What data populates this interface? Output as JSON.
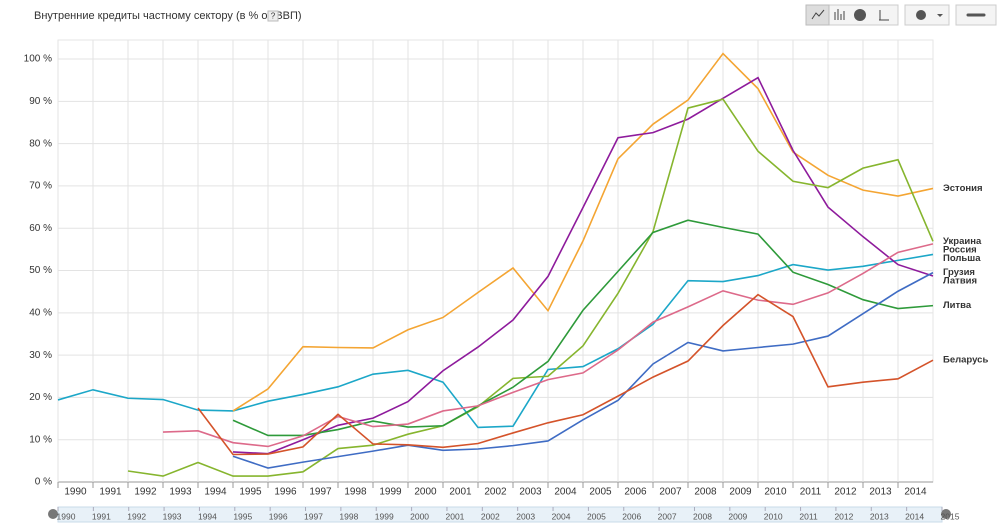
{
  "chart_data": {
    "type": "line",
    "title": "Внутренние кредиты частному сектору (в % от ВВП)",
    "help": "?",
    "x": [
      1990,
      1991,
      1992,
      1993,
      1994,
      1995,
      1996,
      1997,
      1998,
      1999,
      2000,
      2001,
      2002,
      2003,
      2004,
      2005,
      2006,
      2007,
      2008,
      2009,
      2010,
      2011,
      2012,
      2013,
      2014,
      2015
    ],
    "xlim": [
      1990,
      2015
    ],
    "xticks": [
      1990,
      1991,
      1992,
      1993,
      1994,
      1995,
      1996,
      1997,
      1998,
      1999,
      2000,
      2001,
      2002,
      2003,
      2004,
      2005,
      2006,
      2007,
      2008,
      2009,
      2010,
      2011,
      2012,
      2013,
      2014
    ],
    "ylim": [
      0,
      104.5
    ],
    "yticks": [
      {
        "value": 0,
        "label": "0 %"
      },
      {
        "value": 10,
        "label": "10 %"
      },
      {
        "value": 20,
        "label": "20 %"
      },
      {
        "value": 30,
        "label": "30 %"
      },
      {
        "value": 40,
        "label": "40 %"
      },
      {
        "value": 50,
        "label": "50 %"
      },
      {
        "value": 60,
        "label": "60 %"
      },
      {
        "value": 70,
        "label": "70 %"
      },
      {
        "value": 80,
        "label": "80 %"
      },
      {
        "value": 90,
        "label": "90 %"
      },
      {
        "value": 100,
        "label": "100 %"
      }
    ],
    "grid": true,
    "timeline_ticks": [
      1990,
      1991,
      1992,
      1993,
      1994,
      1995,
      1996,
      1997,
      1998,
      1999,
      2000,
      2001,
      2002,
      2003,
      2004,
      2005,
      2006,
      2007,
      2008,
      2009,
      2010,
      2011,
      2012,
      2013,
      2014,
      2015
    ],
    "series": [
      {
        "name": "Польша",
        "color": "#1ca7c8",
        "values": [
          19.4,
          21.8,
          19.8,
          19.5,
          17,
          16.8,
          19.1,
          20.7,
          22.5,
          25.5,
          26.4,
          23.6,
          12.9,
          13.2,
          26.6,
          27.3,
          31.5,
          37.3,
          47.6,
          47.4,
          48.8,
          51.4,
          50.1,
          51,
          52.4,
          53.8
        ]
      },
      {
        "name": "Эстония",
        "color": "#f4a533",
        "values": [
          null,
          null,
          null,
          null,
          null,
          16.8,
          22,
          32,
          31.8,
          31.7,
          36,
          38.9,
          44.8,
          50.6,
          40.5,
          57,
          76.4,
          84.6,
          90.3,
          101.3,
          93,
          78,
          72.5,
          69,
          67.6,
          69.4
        ]
      },
      {
        "name": "Латвия",
        "color": "#8e1b9c",
        "values": [
          null,
          null,
          null,
          null,
          null,
          7.1,
          6.7,
          10,
          13.4,
          15.1,
          19,
          26.3,
          31.9,
          38.3,
          48.6,
          64.9,
          81.4,
          82.6,
          85.8,
          90.7,
          95.6,
          78.4,
          65,
          58,
          51.4,
          48.7
        ]
      },
      {
        "name": "Украина",
        "color": "#86b52e",
        "values": [
          null,
          null,
          2.6,
          1.4,
          4.6,
          1.4,
          1.4,
          2.4,
          7.9,
          8.7,
          11.3,
          13.3,
          17.8,
          24.5,
          25,
          32.2,
          44.6,
          59.2,
          88.4,
          90.5,
          78.2,
          71.1,
          69.6,
          74.2,
          76.2,
          56.9
        ]
      },
      {
        "name": "Литва",
        "color": "#2e9a3a",
        "values": [
          null,
          null,
          null,
          null,
          null,
          14.6,
          11,
          11,
          12.4,
          14.4,
          13,
          13.3,
          18,
          22.4,
          28.5,
          40.6,
          49.8,
          59,
          61.9,
          60.2,
          58.6,
          49.6,
          46.7,
          43.1,
          41,
          41.7
        ]
      },
      {
        "name": "Россия",
        "color": "#dd6a8a",
        "values": [
          null,
          null,
          null,
          11.8,
          12.1,
          9.3,
          8.4,
          10.9,
          15.5,
          13.1,
          13.7,
          16.8,
          18,
          21.2,
          24.2,
          25.8,
          31.2,
          37.8,
          41.4,
          45.2,
          43,
          42,
          44.7,
          49.3,
          54.3,
          56.3
        ]
      },
      {
        "name": "Грузия",
        "color": "#3f6cc4",
        "values": [
          null,
          null,
          null,
          null,
          null,
          6.1,
          3.3,
          4.7,
          6,
          7.3,
          8.7,
          7.5,
          7.8,
          8.6,
          9.7,
          14.7,
          19.3,
          27.9,
          33,
          31,
          31.8,
          32.6,
          34.5,
          39.8,
          45.1,
          49.5
        ]
      },
      {
        "name": "Беларусь",
        "color": "#d4532a",
        "values": [
          null,
          null,
          null,
          null,
          17.5,
          6.5,
          6.6,
          8.3,
          16,
          9,
          8.8,
          8.2,
          9.1,
          11.6,
          14,
          15.9,
          20.3,
          24.8,
          28.6,
          37,
          44.3,
          39.1,
          22.5,
          23.6,
          24.4,
          28.8
        ]
      }
    ]
  }
}
